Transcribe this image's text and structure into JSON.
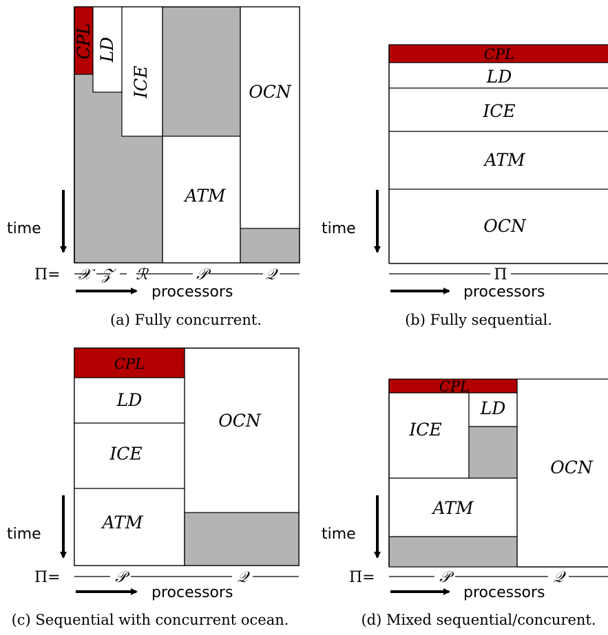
{
  "colors": {
    "cpl": "#b20000",
    "idle": "#b4b4b4",
    "box": "#ffffff",
    "stroke": "#000000"
  },
  "blocks": {
    "cpl": "CPL",
    "ld": "LD",
    "ice": "ICE",
    "atm": "ATM",
    "ocn": "OCN"
  },
  "axes": {
    "time": "time",
    "processors": "processors",
    "pi": "Π",
    "pi_eq": "Π=",
    "sets": {
      "x": "𝒳",
      "z": "𝒵",
      "r": "ℛ",
      "p": "𝒫",
      "q": "𝒬"
    }
  },
  "panels": {
    "a": {
      "caption": "(a) Fully concurrent."
    },
    "b": {
      "caption": "(b) Fully sequential."
    },
    "c": {
      "caption": "(c) Sequential with concurrent ocean."
    },
    "d": {
      "caption": "(d) Mixed sequential/concurent."
    }
  }
}
